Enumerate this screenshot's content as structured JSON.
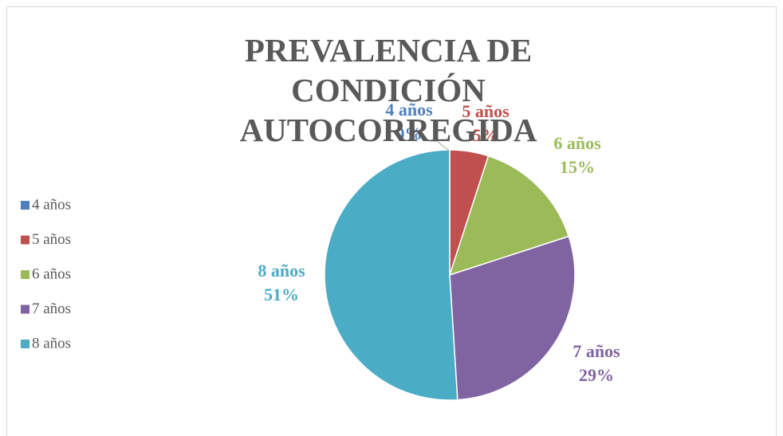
{
  "chart_data": {
    "type": "pie",
    "title": "PREVALENCIA DE CONDICIÓN AUTOCORREGIDA",
    "categories": [
      "4 años",
      "5 años",
      "6 años",
      "7 años",
      "8 años"
    ],
    "values": [
      0,
      5,
      15,
      29,
      51
    ],
    "value_labels": [
      "0%",
      "5%",
      "15%",
      "29%",
      "51%"
    ],
    "colors": [
      "#4f81bd",
      "#c0504d",
      "#9bbb59",
      "#8064a2",
      "#4bacc6"
    ],
    "legend": "left"
  }
}
